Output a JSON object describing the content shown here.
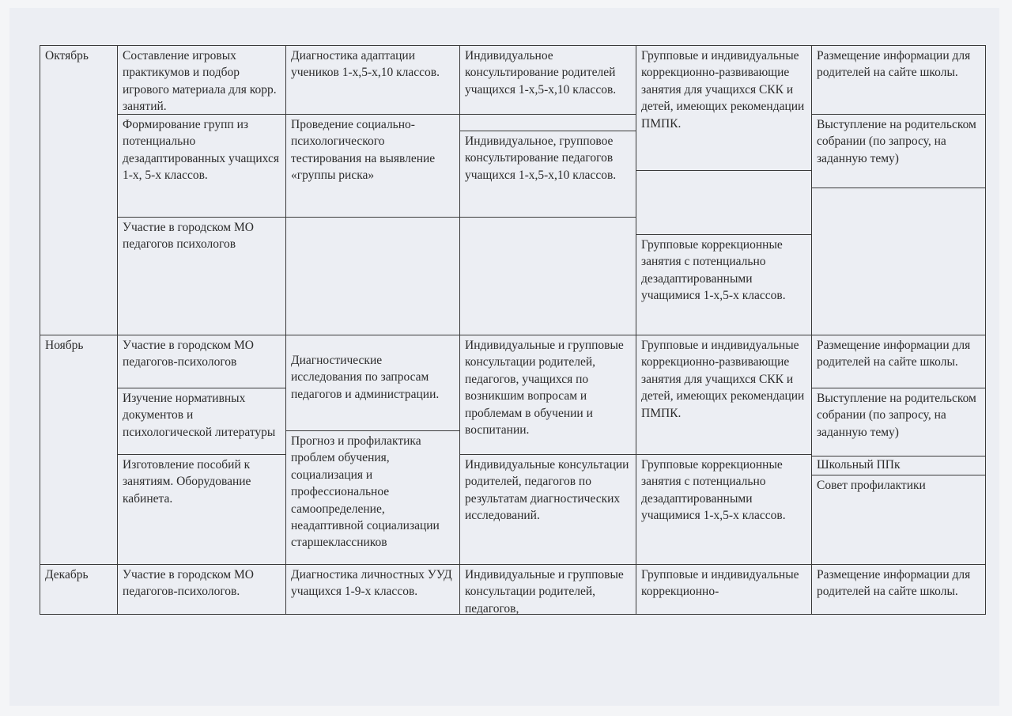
{
  "table": {
    "october": {
      "month": "Октябрь",
      "c2": [
        "Составление игровых практикумов и подбор игрового материала для корр. занятий.",
        "Формирование групп из потенциально дезадаптированных учащихся 1-х, 5-х классов.",
        "Участие в городском МО педагогов психологов"
      ],
      "c3": [
        "Диагностика адаптации учеников 1-х,5-х,10 классов.",
        "Проведение социально-психологического тестирования на выявление «группы риска»"
      ],
      "c4": [
        "Индивидуальное консультирование родителей учащихся 1-х,5-х,10 классов.",
        "Индивидуальное, групповое консультирование педагогов учащихся 1-х,5-х,10 классов."
      ],
      "c5": [
        "Групповые и индивидуальные коррекционно-развивающие занятия для учащихся СКК и детей, имеющих рекомендации ПМПК.",
        "Групповые коррекционные занятия с потенциально дезадаптированными учащимися 1-х,5-х классов."
      ],
      "c6": [
        "Размещение информации для родителей на сайте школы.",
        "Выступление на родительском собрании (по запросу, на заданную тему)"
      ]
    },
    "november": {
      "month": "Ноябрь",
      "c2": [
        "Участие в городском МО педагогов-психологов",
        "Изучение нормативных документов и психологической литературы",
        "Изготовление пособий к занятиям. Оборудование кабинета."
      ],
      "c3": [
        "Диагностические исследования по запросам педагогов и администрации.",
        "Прогноз и профилактика проблем обучения, социализация и профессиональное самоопределение, неадаптивной социализации старшеклассников"
      ],
      "c4": [
        "Индивидуальные и групповые консультации родителей, педагогов, учащихся по возникшим вопросам и проблемам в обучении и воспитании.",
        "Индивидуальные консультации родителей, педагогов по результатам диагностических исследований."
      ],
      "c5": [
        "Групповые и индивидуальные коррекционно-развивающие занятия для учащихся СКК и детей, имеющих рекомендации ПМПК.",
        "Групповые коррекционные занятия с потенциально дезадаптированными учащимися 1-х,5-х классов."
      ],
      "c6": [
        "Размещение информации для родителей на сайте школы.",
        "Выступление на родительском собрании (по запросу, на заданную тему)",
        "Школьный ППк",
        "Совет профилактики"
      ]
    },
    "december": {
      "month": "Декабрь",
      "c2": [
        "Участие в городском МО педагогов-психологов."
      ],
      "c3": [
        "Диагностика личностных УУД  учащихся 1-9-х классов."
      ],
      "c4": [
        "Индивидуальные и групповые консультации родителей, педагогов,"
      ],
      "c5": [
        "Групповые и индивидуальные коррекционно-"
      ],
      "c6": [
        "Размещение информации для родителей на сайте школы."
      ]
    }
  }
}
